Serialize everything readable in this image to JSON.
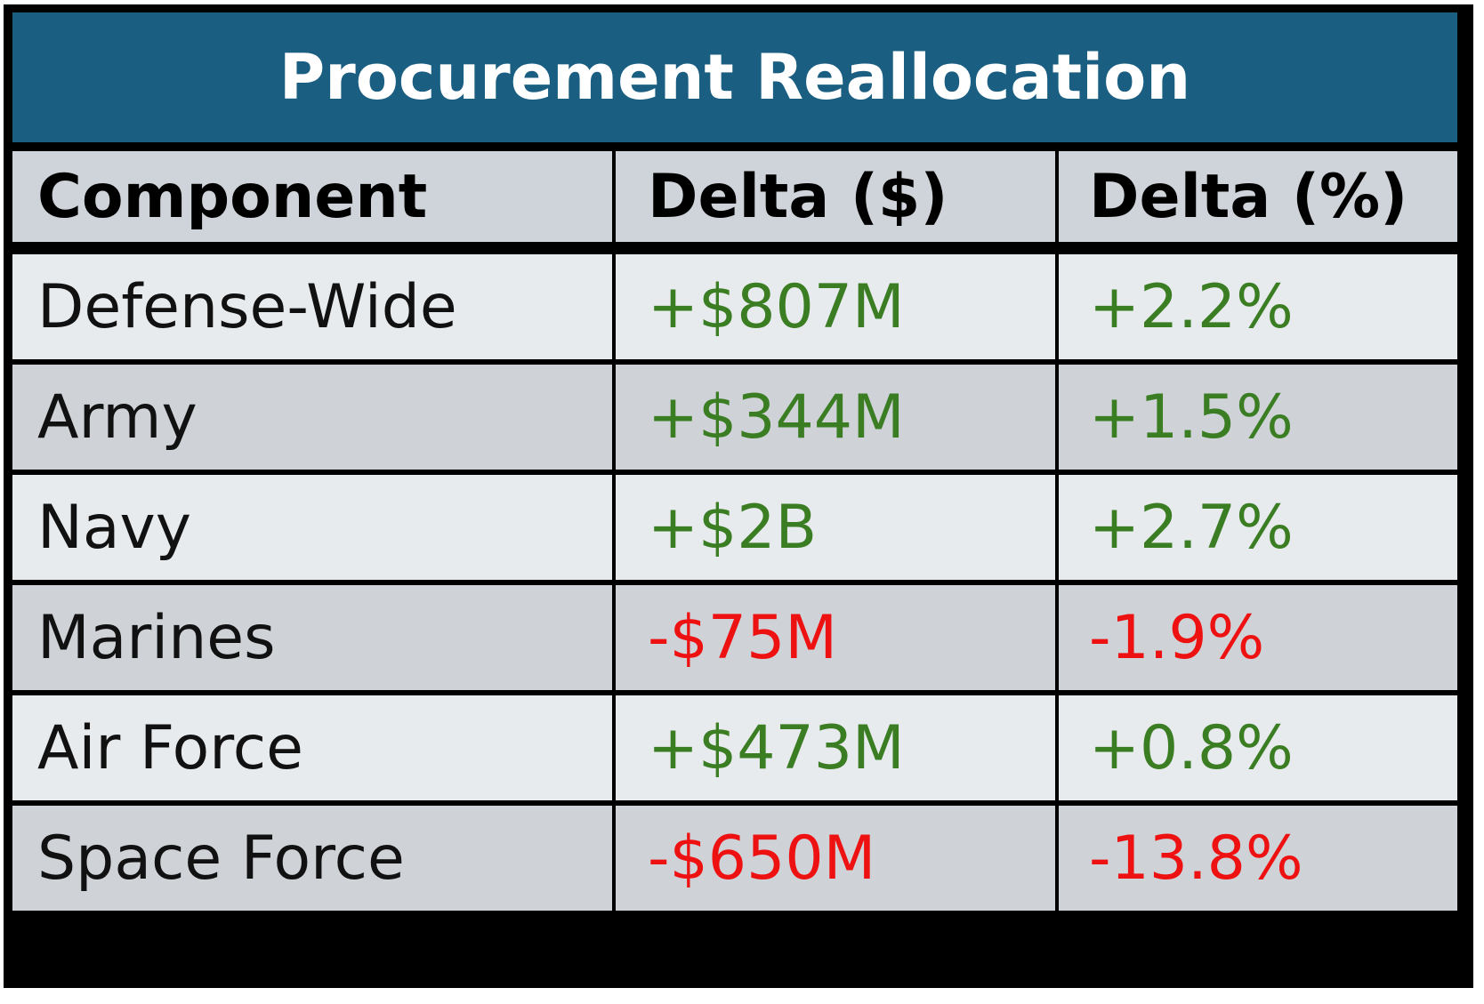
{
  "chart_data": {
    "type": "table",
    "title": "Procurement Reallocation",
    "columns": [
      "Component",
      "Delta ($)",
      "Delta (%)"
    ],
    "rows": [
      {
        "component": "Defense-Wide",
        "delta_usd": "+$807M",
        "delta_pct": "+2.2%",
        "sign": "pos"
      },
      {
        "component": "Army",
        "delta_usd": "+$344M",
        "delta_pct": "+1.5%",
        "sign": "pos"
      },
      {
        "component": "Navy",
        "delta_usd": "+$2B",
        "delta_pct": "+2.7%",
        "sign": "pos"
      },
      {
        "component": "Marines",
        "delta_usd": "-$75M",
        "delta_pct": "-1.9%",
        "sign": "neg"
      },
      {
        "component": "Air Force",
        "delta_usd": "+$473M",
        "delta_pct": "+0.8%",
        "sign": "pos"
      },
      {
        "component": "Space Force",
        "delta_usd": "-$650M",
        "delta_pct": "-13.8%",
        "sign": "neg"
      }
    ]
  },
  "colors": {
    "title_bg": "#1a5e82",
    "positive": "#3a7d22",
    "negative": "#ee1111",
    "header_bg": "#cfd4da",
    "row_light": "#e8ebee",
    "row_dark": "#cfd3d8"
  }
}
